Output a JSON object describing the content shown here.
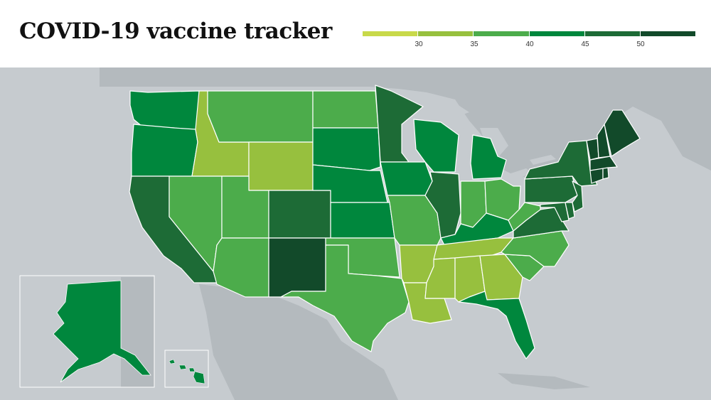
{
  "title": "COVID-19 vaccine tracker",
  "legend": {
    "ticks": [
      "30",
      "35",
      "40",
      "45",
      "50"
    ],
    "colors": [
      "#c8d94a",
      "#97c03e",
      "#4cac4b",
      "#1f9c48",
      "#00873d",
      "#1d6b36",
      "#124a2a"
    ]
  },
  "colors": {
    "water": "#c6cbcf",
    "land": "#b4babe",
    "border": "#ffffff"
  },
  "states": [
    {
      "name": "Washington",
      "color": "#00873d"
    },
    {
      "name": "Oregon",
      "color": "#00873d"
    },
    {
      "name": "California",
      "color": "#1d6b36"
    },
    {
      "name": "Idaho",
      "color": "#97c03e"
    },
    {
      "name": "Nevada",
      "color": "#4cac4b"
    },
    {
      "name": "Montana",
      "color": "#4cac4b"
    },
    {
      "name": "Wyoming",
      "color": "#97c03e"
    },
    {
      "name": "Utah",
      "color": "#4cac4b"
    },
    {
      "name": "Arizona",
      "color": "#4cac4b"
    },
    {
      "name": "Colorado",
      "color": "#1d6b36"
    },
    {
      "name": "New Mexico",
      "color": "#124a2a"
    },
    {
      "name": "North Dakota",
      "color": "#4cac4b"
    },
    {
      "name": "South Dakota",
      "color": "#00873d"
    },
    {
      "name": "Nebraska",
      "color": "#00873d"
    },
    {
      "name": "Kansas",
      "color": "#00873d"
    },
    {
      "name": "Oklahoma",
      "color": "#4cac4b"
    },
    {
      "name": "Texas",
      "color": "#4cac4b"
    },
    {
      "name": "Minnesota",
      "color": "#1d6b36"
    },
    {
      "name": "Iowa",
      "color": "#00873d"
    },
    {
      "name": "Missouri",
      "color": "#4cac4b"
    },
    {
      "name": "Arkansas",
      "color": "#97c03e"
    },
    {
      "name": "Louisiana",
      "color": "#97c03e"
    },
    {
      "name": "Wisconsin",
      "color": "#00873d"
    },
    {
      "name": "Illinois",
      "color": "#1d6b36"
    },
    {
      "name": "Michigan",
      "color": "#00873d"
    },
    {
      "name": "Indiana",
      "color": "#4cac4b"
    },
    {
      "name": "Ohio",
      "color": "#4cac4b"
    },
    {
      "name": "Kentucky",
      "color": "#00873d"
    },
    {
      "name": "Tennessee",
      "color": "#97c03e"
    },
    {
      "name": "Mississippi",
      "color": "#97c03e"
    },
    {
      "name": "Alabama",
      "color": "#97c03e"
    },
    {
      "name": "Georgia",
      "color": "#97c03e"
    },
    {
      "name": "Florida",
      "color": "#00873d"
    },
    {
      "name": "South Carolina",
      "color": "#4cac4b"
    },
    {
      "name": "North Carolina",
      "color": "#4cac4b"
    },
    {
      "name": "Virginia",
      "color": "#1d6b36"
    },
    {
      "name": "West Virginia",
      "color": "#4cac4b"
    },
    {
      "name": "Pennsylvania",
      "color": "#1d6b36"
    },
    {
      "name": "New York",
      "color": "#1d6b36"
    },
    {
      "name": "Maryland",
      "color": "#1d6b36"
    },
    {
      "name": "Delaware",
      "color": "#1d6b36"
    },
    {
      "name": "New Jersey",
      "color": "#1d6b36"
    },
    {
      "name": "Connecticut",
      "color": "#124a2a"
    },
    {
      "name": "Rhode Island",
      "color": "#124a2a"
    },
    {
      "name": "Massachusetts",
      "color": "#124a2a"
    },
    {
      "name": "Vermont",
      "color": "#124a2a"
    },
    {
      "name": "New Hampshire",
      "color": "#124a2a"
    },
    {
      "name": "Maine",
      "color": "#124a2a"
    },
    {
      "name": "Alaska",
      "color": "#00873d"
    },
    {
      "name": "Hawaii",
      "color": "#00873d"
    }
  ]
}
